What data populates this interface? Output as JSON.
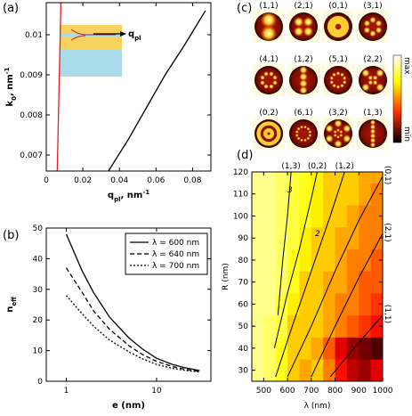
{
  "chart_data": [
    {
      "type": "line",
      "panel_label": "(a)",
      "x_label": [
        {
          "text": "q"
        },
        {
          "text": "pl",
          "sub": true
        },
        {
          "text": ", nm"
        },
        {
          "text": "-1",
          "sup": true
        }
      ],
      "y_label": [
        {
          "text": "k"
        },
        {
          "text": "0",
          "sub": true
        },
        {
          "text": ", nm"
        },
        {
          "text": "-1",
          "sup": true
        }
      ],
      "inset_label": [
        {
          "text": "q"
        },
        {
          "text": "pl",
          "sub": true
        }
      ],
      "xlim": [
        0,
        0.09
      ],
      "ylim": [
        0.0066,
        0.0108
      ],
      "xticks": [
        0,
        0.02,
        0.04,
        0.06,
        0.08
      ],
      "yticks": [
        0.007,
        0.008,
        0.009,
        0.01
      ],
      "series": [
        {
          "color": "#e02020",
          "x": [
            0.006,
            0.008
          ],
          "values": [
            0.0066,
            0.0108
          ]
        },
        {
          "color": "#000000",
          "x": [
            0.034,
            0.045,
            0.055,
            0.065,
            0.075,
            0.087
          ],
          "values": [
            0.0066,
            0.0074,
            0.0082,
            0.009,
            0.0097,
            0.0106
          ]
        }
      ]
    },
    {
      "type": "line",
      "panel_label": "(b)",
      "log_x": true,
      "x_label": [
        {
          "text": "e (nm)"
        }
      ],
      "y_label": [
        {
          "text": "n"
        },
        {
          "text": "eff",
          "sub": true
        }
      ],
      "xlim": [
        0.6,
        40
      ],
      "ylim": [
        0,
        50
      ],
      "xticks": [
        1,
        10
      ],
      "yticks": [
        0,
        10,
        20,
        30,
        40,
        50
      ],
      "legend": "upper right",
      "x": [
        1,
        1.5,
        2,
        3,
        5,
        7,
        10,
        15,
        20,
        30
      ],
      "series": [
        {
          "name": "λ = 600 nm",
          "color": "#000000",
          "dash": "solid",
          "values": [
            48,
            36,
            29,
            21,
            14,
            10.5,
            7.5,
            5.5,
            4.5,
            3.5
          ]
        },
        {
          "name": "λ = 640 nm",
          "color": "#000000",
          "dash": "dashed",
          "values": [
            37,
            29,
            23,
            17,
            11.5,
            8.7,
            6.5,
            4.8,
            4,
            3.2
          ]
        },
        {
          "name": "λ = 700 nm",
          "color": "#000000",
          "dash": "dotted",
          "values": [
            28,
            22,
            18,
            13.5,
            9.5,
            7.3,
            5.5,
            4.2,
            3.6,
            3
          ]
        }
      ]
    },
    {
      "type": "mode-grid",
      "panel_label": "(c)",
      "modes": [
        "(1,1)",
        "(2,1)",
        "(0,1)",
        "(3,1)",
        "(4,1)",
        "(1,2)",
        "(5,1)",
        "(2,2)",
        "(0,2)",
        "(6,1)",
        "(3,2)",
        "(1,3)"
      ],
      "colorbar": {
        "max": "max",
        "min": "min"
      }
    },
    {
      "type": "heatmap",
      "panel_label": "(d)",
      "x_label": [
        {
          "text": "λ (nm)"
        }
      ],
      "y_label": [
        {
          "text": "R (nm)"
        }
      ],
      "xlim": [
        450,
        1000
      ],
      "ylim": [
        25,
        120
      ],
      "xticks": [
        500,
        600,
        700,
        800,
        900,
        1000
      ],
      "yticks": [
        30,
        40,
        50,
        60,
        70,
        80,
        90,
        100,
        110,
        120
      ],
      "x": [
        475,
        525,
        575,
        625,
        675,
        725,
        775,
        825,
        875,
        925,
        975
      ],
      "y": [
        30,
        40,
        50,
        60,
        70,
        80,
        90,
        100,
        110,
        120
      ],
      "z": [
        [
          0.85,
          0.8,
          0.7,
          0.6,
          0.55,
          0.6,
          0.5,
          0.35,
          0.25,
          0.2,
          0.3
        ],
        [
          0.85,
          0.8,
          0.7,
          0.6,
          0.6,
          0.55,
          0.45,
          0.3,
          0.2,
          0.15,
          0.1
        ],
        [
          0.85,
          0.8,
          0.75,
          0.6,
          0.6,
          0.6,
          0.55,
          0.5,
          0.45,
          0.4,
          0.35
        ],
        [
          0.85,
          0.85,
          0.75,
          0.65,
          0.6,
          0.6,
          0.55,
          0.5,
          0.5,
          0.45,
          0.4
        ],
        [
          0.85,
          0.85,
          0.8,
          0.7,
          0.6,
          0.6,
          0.55,
          0.55,
          0.5,
          0.45,
          0.45
        ],
        [
          0.85,
          0.85,
          0.8,
          0.7,
          0.65,
          0.6,
          0.6,
          0.55,
          0.5,
          0.5,
          0.45
        ],
        [
          0.85,
          0.85,
          0.8,
          0.75,
          0.65,
          0.6,
          0.6,
          0.55,
          0.55,
          0.5,
          0.5
        ],
        [
          0.85,
          0.85,
          0.8,
          0.75,
          0.7,
          0.65,
          0.6,
          0.6,
          0.55,
          0.5,
          0.5
        ],
        [
          0.85,
          0.85,
          0.8,
          0.75,
          0.7,
          0.65,
          0.6,
          0.6,
          0.6,
          0.55,
          0.5
        ],
        [
          0.85,
          0.85,
          0.8,
          0.75,
          0.7,
          0.65,
          0.6,
          0.6,
          0.6,
          0.55,
          0.55
        ]
      ],
      "curves": [
        {
          "name": "(1,3)",
          "x": [
            560,
            580,
            600,
            615
          ],
          "y": [
            55,
            80,
            100,
            120
          ]
        },
        {
          "name": "(0,2)",
          "x": [
            545,
            600,
            650,
            700,
            725
          ],
          "y": [
            40,
            65,
            85,
            108,
            120
          ]
        },
        {
          "name": "(1,2)",
          "x": [
            550,
            620,
            700,
            780,
            840
          ],
          "y": [
            27,
            50,
            75,
            100,
            120
          ]
        },
        {
          "name": "(0,1)",
          "x": [
            600,
            700,
            800,
            900,
            1000
          ],
          "y": [
            27,
            50,
            75,
            98,
            118
          ]
        },
        {
          "name": "(2,1)",
          "x": [
            700,
            800,
            900,
            1000
          ],
          "y": [
            27,
            50,
            72,
            92
          ]
        },
        {
          "name": "(1,1)",
          "x": [
            780,
            880,
            1000
          ],
          "y": [
            27,
            40,
            55
          ]
        }
      ],
      "annotations": [
        "3",
        "2"
      ]
    }
  ]
}
